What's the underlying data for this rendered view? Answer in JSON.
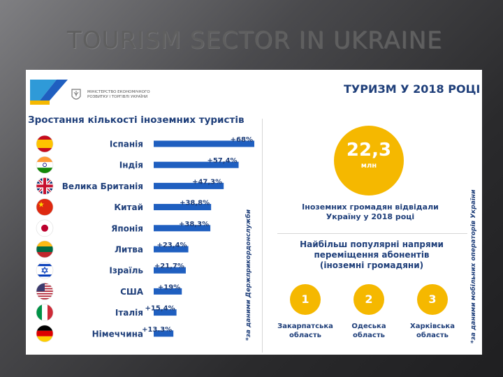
{
  "slide": {
    "title": "TOURISM SECTOR IN UKRAINE"
  },
  "ministry": {
    "name": "МІНІСТЕРСТВО ЕКОНОМІЧНОГО РОЗВИТКУ І ТОРГІВЛІ УКРАЇНИ"
  },
  "chart_data": {
    "type": "bar",
    "title": "Зростання кількості іноземних туристів",
    "orientation": "horizontal",
    "unit": "%",
    "categories": [
      "Іспанія",
      "Індія",
      "Велика Британія",
      "Китай",
      "Японія",
      "Литва",
      "Ізраїль",
      "США",
      "Італія",
      "Німеччина"
    ],
    "values": [
      68,
      57.4,
      47.3,
      38.8,
      38.3,
      23.4,
      21.7,
      19,
      15.4,
      13.3
    ],
    "value_labels": [
      "+68%",
      "+57,4%",
      "+47,3%",
      "+38,8%",
      "+38,3%",
      "+23,4%",
      "+21,7%",
      "+19%",
      "+15,4%",
      "+13.3%"
    ],
    "flag_icons": [
      "spain-flag-icon",
      "india-flag-icon",
      "uk-flag-icon",
      "china-flag-icon",
      "japan-flag-icon",
      "lithuania-flag-icon",
      "israel-flag-icon",
      "usa-flag-icon",
      "italy-flag-icon",
      "germany-flag-icon"
    ],
    "bar_color": "#1f5fc0",
    "source": "*за даними Держприкордонслужби"
  },
  "summary": {
    "title": "ТУРИЗМ У 2018 РОЦІ",
    "value": "22,3",
    "unit": "млн",
    "caption_line1": "Іноземних громадян відвідали",
    "caption_line2": "Україну у 2018 році"
  },
  "directions": {
    "title_line1": "Найбільш популярні напрями",
    "title_line2": "переміщення абонентів",
    "title_line3": "(іноземні громадяни)",
    "regions": [
      {
        "rank": "1",
        "name_line1": "Закарпатська",
        "name_line2": "область"
      },
      {
        "rank": "2",
        "name_line1": "Одеська",
        "name_line2": "область"
      },
      {
        "rank": "3",
        "name_line1": "Харківська",
        "name_line2": "область"
      }
    ],
    "source": "*за даними мобільних операторів України"
  },
  "colors": {
    "accent": "#f5b800",
    "navy": "#1f3f7a",
    "bar": "#1f5fc0"
  }
}
